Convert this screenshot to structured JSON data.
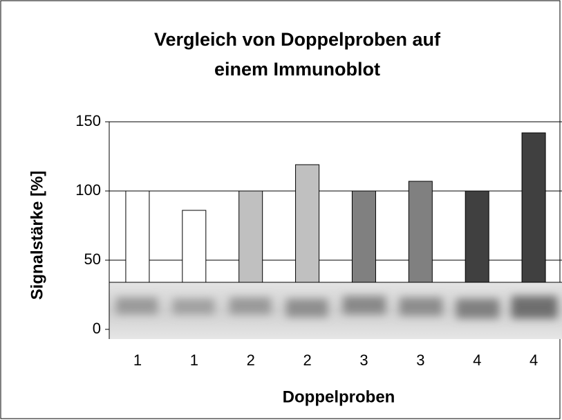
{
  "chart_data": {
    "type": "bar",
    "title": "Vergleich von Doppelproben auf einem Immunoblot",
    "x_label": "Doppelproben",
    "y_label": "Signalstärke [%]",
    "categories": [
      "1",
      "1",
      "2",
      "2",
      "3",
      "3",
      "4",
      "4"
    ],
    "values": [
      100,
      86,
      100,
      119,
      100,
      107,
      100,
      142
    ],
    "colors": [
      "#ffffff",
      "#ffffff",
      "#c0c0c0",
      "#c0c0c0",
      "#808080",
      "#808080",
      "#404040",
      "#404040"
    ],
    "ylim": [
      0,
      150
    ],
    "yticks": [
      0,
      50,
      100,
      150
    ],
    "grid": true
  }
}
